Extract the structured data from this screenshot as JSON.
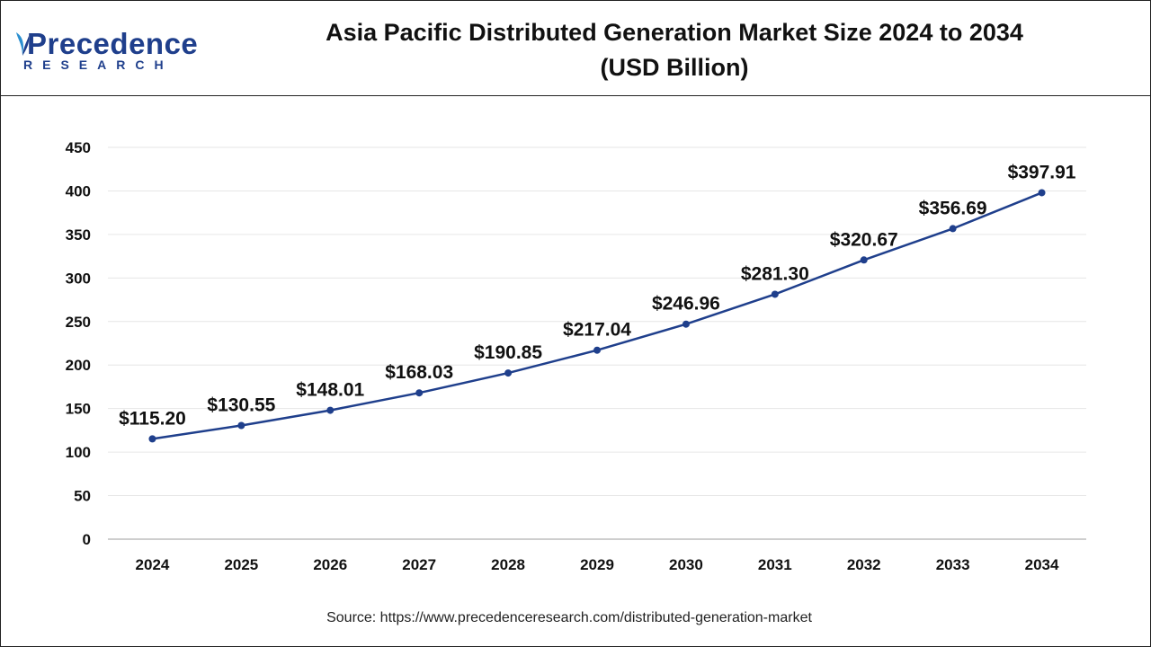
{
  "header": {
    "logo_text": "Precedence",
    "logo_subtext": "RESEARCH",
    "title_line1": "Asia Pacific Distributed Generation Market Size 2024 to 2034",
    "title_line2": "(USD Billion)"
  },
  "source": "Source: https://www.precedenceresearch.com/distributed-generation-market",
  "colors": {
    "line": "#1f3f8c",
    "marker": "#1f3f8c",
    "brand": "#1f3f8c",
    "grid": "#e6e6e6"
  },
  "chart_data": {
    "type": "line",
    "title": "Asia Pacific Distributed Generation Market Size 2024 to 2034 (USD Billion)",
    "xlabel": "",
    "ylabel": "",
    "categories": [
      "2024",
      "2025",
      "2026",
      "2027",
      "2028",
      "2029",
      "2030",
      "2031",
      "2032",
      "2033",
      "2034"
    ],
    "values": [
      115.2,
      130.55,
      148.01,
      168.03,
      190.85,
      217.04,
      246.96,
      281.3,
      320.67,
      356.69,
      397.91
    ],
    "data_labels": [
      "$115.20",
      "$130.55",
      "$148.01",
      "$168.03",
      "$190.85",
      "$217.04",
      "$246.96",
      "$281.30",
      "$320.67",
      "$356.69",
      "$397.91"
    ],
    "ylim": [
      0,
      450
    ],
    "yticks": [
      0,
      50,
      100,
      150,
      200,
      250,
      300,
      350,
      400,
      450
    ],
    "grid": true,
    "legend": "none"
  }
}
